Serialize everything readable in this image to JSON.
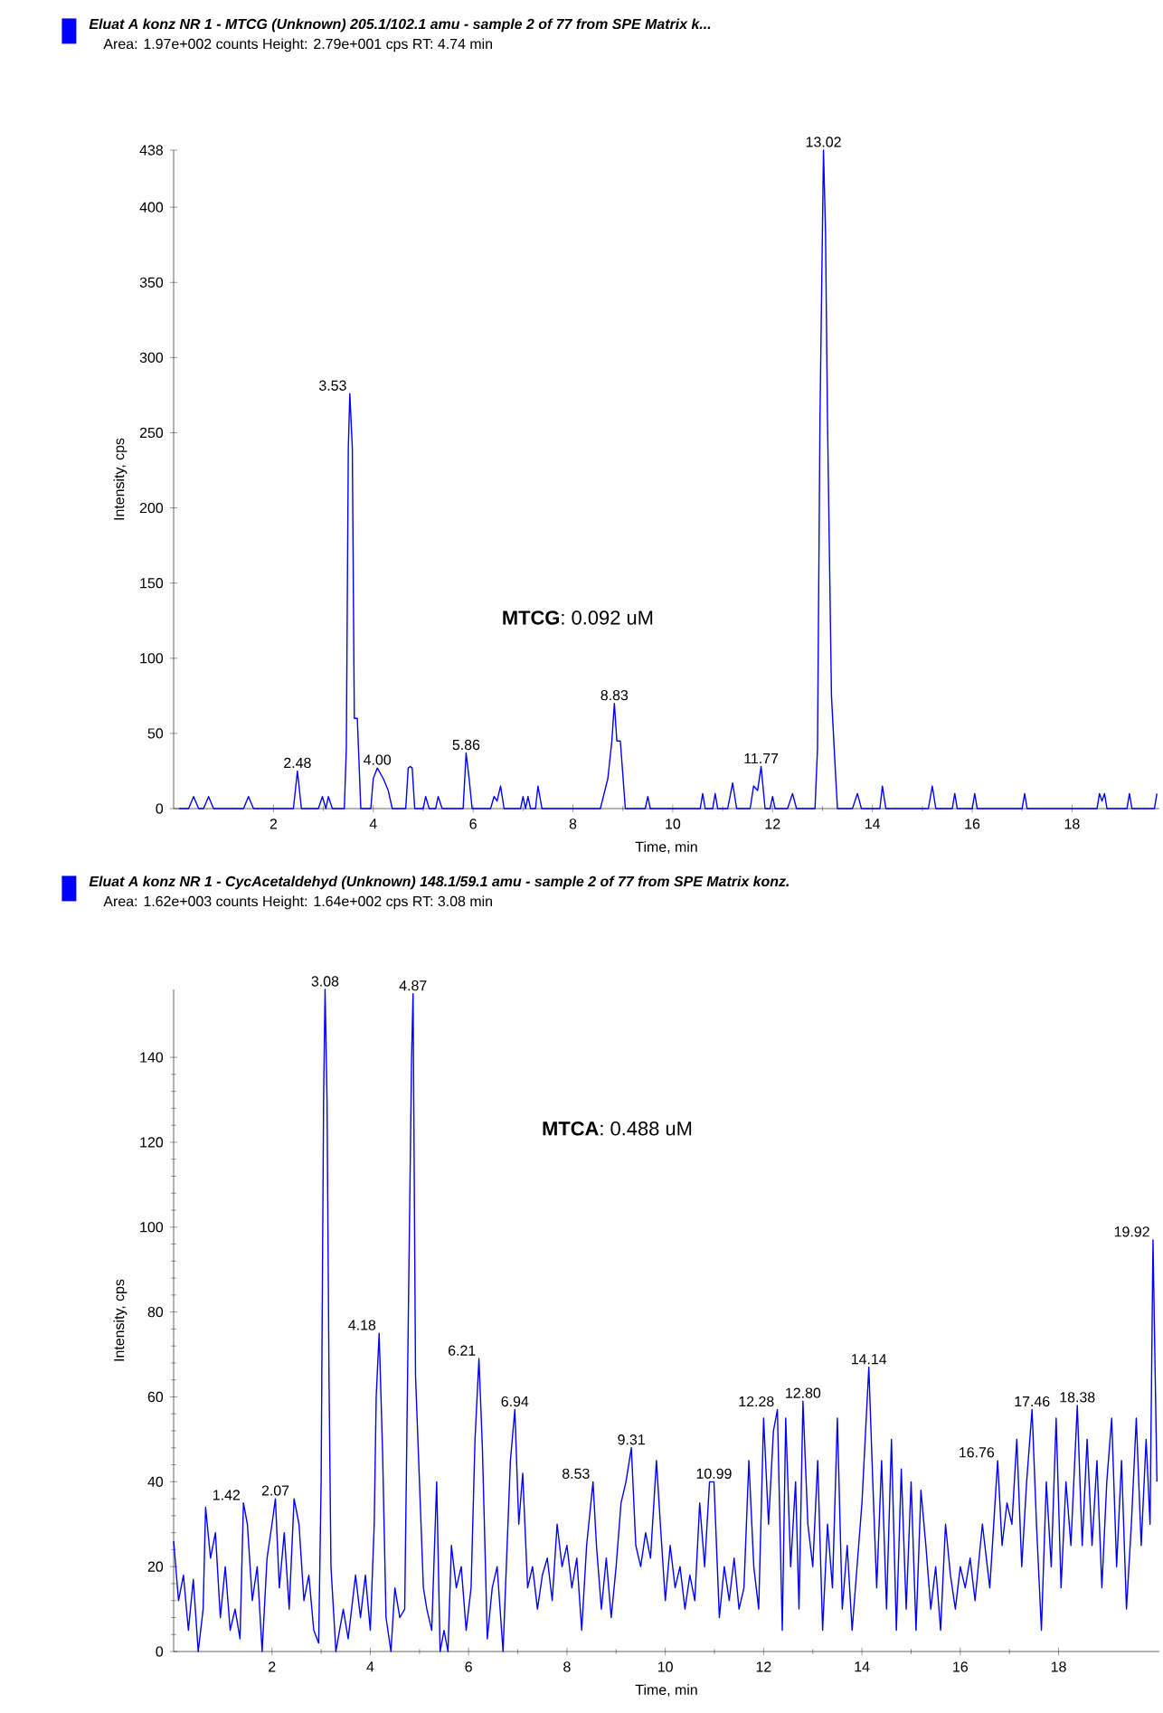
{
  "chart_data": [
    {
      "type": "line",
      "title": "Eluat A konz NR 1 - MTCG (Unknown) 205.1/102.1 amu - sample 2 of 77 from SPE Matrix k...",
      "subtitle": "Area: 1.97e+002 counts  Height: 2.79e+001 cps  RT: 4.74 min",
      "xlabel": "Time, min",
      "ylabel": "Intensity, cps",
      "color": "#0000ff",
      "xlim": [
        0,
        19.75
      ],
      "ylim": [
        0,
        438
      ],
      "xticks": [
        2,
        4,
        6,
        8,
        10,
        12,
        14,
        16,
        18
      ],
      "yticks": [
        0,
        50,
        100,
        150,
        200,
        250,
        300,
        350,
        400,
        438
      ],
      "x": [
        0.1,
        0.3,
        0.4,
        0.5,
        0.6,
        0.7,
        0.8,
        1.4,
        1.5,
        1.6,
        2.4,
        2.48,
        2.56,
        2.9,
        2.98,
        3.05,
        3.1,
        3.18,
        3.42,
        3.46,
        3.5,
        3.53,
        3.58,
        3.62,
        3.68,
        3.75,
        3.95,
        4.0,
        4.08,
        4.2,
        4.3,
        4.38,
        4.65,
        4.7,
        4.74,
        4.78,
        4.83,
        5.0,
        5.05,
        5.12,
        5.25,
        5.3,
        5.38,
        5.8,
        5.86,
        5.92,
        5.98,
        6.35,
        6.42,
        6.48,
        6.55,
        6.62,
        6.95,
        7.0,
        7.05,
        7.1,
        7.15,
        7.25,
        7.3,
        7.38,
        8.55,
        8.7,
        8.78,
        8.83,
        8.88,
        8.95,
        9.05,
        9.45,
        9.5,
        9.55,
        10.55,
        10.6,
        10.65,
        10.8,
        10.85,
        10.9,
        11.1,
        11.2,
        11.28,
        11.55,
        11.62,
        11.7,
        11.77,
        11.85,
        11.95,
        12.0,
        12.05,
        12.3,
        12.4,
        12.48,
        12.85,
        12.9,
        12.95,
        13.02,
        13.06,
        13.1,
        13.18,
        13.25,
        13.3,
        13.6,
        13.7,
        13.78,
        14.15,
        14.2,
        14.27,
        15.12,
        15.2,
        15.27,
        15.6,
        15.65,
        15.7,
        16.0,
        16.05,
        16.1,
        17.0,
        17.05,
        17.1,
        18.5,
        18.55,
        18.6,
        18.65,
        18.7,
        19.1,
        19.15,
        19.2,
        19.65,
        19.7
      ],
      "values": [
        0,
        0,
        8,
        0,
        0,
        8,
        0,
        0,
        8,
        0,
        0,
        25,
        0,
        0,
        8,
        0,
        8,
        0,
        0,
        40,
        240,
        276,
        240,
        60,
        60,
        0,
        0,
        20,
        27,
        20,
        12,
        0,
        0,
        27,
        28,
        27,
        0,
        0,
        8,
        0,
        0,
        8,
        0,
        0,
        37,
        20,
        0,
        0,
        8,
        5,
        15,
        0,
        0,
        8,
        0,
        8,
        0,
        0,
        15,
        0,
        0,
        20,
        45,
        70,
        45,
        45,
        0,
        0,
        8,
        0,
        0,
        10,
        0,
        0,
        10,
        0,
        0,
        17,
        0,
        0,
        15,
        12,
        28,
        0,
        0,
        8,
        0,
        0,
        10,
        0,
        0,
        40,
        260,
        438,
        385,
        260,
        75,
        30,
        0,
        0,
        10,
        0,
        0,
        15,
        0,
        0,
        15,
        0,
        0,
        10,
        0,
        0,
        10,
        0,
        0,
        10,
        0,
        0,
        10,
        5,
        10,
        0,
        0,
        10,
        0,
        0,
        10
      ],
      "annotations": [
        "**MTCG**: 0.092 uM",
        {
          "text": "2.48",
          "x": 2.48,
          "y": 25
        },
        {
          "text": "3.53",
          "x": 3.53,
          "y": 276
        },
        {
          "text": "4.00",
          "x": 4.08,
          "y": 27
        },
        {
          "text": "5.86",
          "x": 5.86,
          "y": 37
        },
        {
          "text": "8.83",
          "x": 8.83,
          "y": 70
        },
        {
          "text": "11.77",
          "x": 11.77,
          "y": 28
        },
        {
          "text": "13.02",
          "x": 13.02,
          "y": 438
        }
      ]
    },
    {
      "type": "line",
      "title": "Eluat A konz NR 1 - CycAcetaldehyd (Unknown) 148.1/59.1 amu - sample 2 of 77 from SPE Matrix konz.",
      "subtitle": "Area: 1.62e+003 counts  Height: 1.64e+002 cps  RT: 3.08 min",
      "xlabel": "Time, min",
      "ylabel": "Intensity, cps",
      "color": "#0000ff",
      "xlim": [
        0,
        20.05
      ],
      "ylim": [
        0,
        156
      ],
      "xticks": [
        2,
        4,
        6,
        8,
        10,
        12,
        14,
        16,
        18
      ],
      "yticks": [
        0,
        20,
        40,
        60,
        80,
        100,
        120,
        140
      ],
      "x": [
        0.0,
        0.1,
        0.2,
        0.3,
        0.4,
        0.5,
        0.6,
        0.65,
        0.75,
        0.85,
        0.95,
        1.05,
        1.15,
        1.25,
        1.35,
        1.42,
        1.5,
        1.6,
        1.7,
        1.8,
        1.9,
        2.0,
        2.07,
        2.15,
        2.25,
        2.35,
        2.45,
        2.55,
        2.65,
        2.75,
        2.85,
        2.95,
        3.0,
        3.05,
        3.08,
        3.12,
        3.16,
        3.2,
        3.3,
        3.45,
        3.55,
        3.7,
        3.8,
        3.9,
        4.0,
        4.08,
        4.12,
        4.18,
        4.25,
        4.32,
        4.42,
        4.5,
        4.6,
        4.7,
        4.78,
        4.84,
        4.87,
        4.92,
        5.0,
        5.08,
        5.15,
        5.25,
        5.35,
        5.42,
        5.5,
        5.58,
        5.65,
        5.75,
        5.85,
        5.95,
        6.05,
        6.13,
        6.21,
        6.28,
        6.38,
        6.48,
        6.58,
        6.7,
        6.85,
        6.94,
        7.02,
        7.1,
        7.2,
        7.3,
        7.4,
        7.5,
        7.6,
        7.7,
        7.8,
        7.9,
        8.0,
        8.1,
        8.2,
        8.3,
        8.4,
        8.53,
        8.6,
        8.7,
        8.8,
        8.9,
        9.0,
        9.1,
        9.2,
        9.31,
        9.4,
        9.5,
        9.6,
        9.7,
        9.82,
        9.9,
        10.0,
        10.1,
        10.2,
        10.3,
        10.4,
        10.5,
        10.6,
        10.7,
        10.8,
        10.9,
        10.99,
        11.1,
        11.2,
        11.3,
        11.4,
        11.5,
        11.6,
        11.7,
        11.8,
        11.9,
        12.0,
        12.1,
        12.2,
        12.28,
        12.38,
        12.45,
        12.55,
        12.65,
        12.72,
        12.8,
        12.9,
        13.0,
        13.1,
        13.2,
        13.3,
        13.4,
        13.5,
        13.6,
        13.7,
        13.8,
        13.9,
        14.0,
        14.14,
        14.22,
        14.3,
        14.4,
        14.5,
        14.6,
        14.7,
        14.8,
        14.9,
        15.0,
        15.1,
        15.2,
        15.3,
        15.4,
        15.5,
        15.6,
        15.7,
        15.8,
        15.9,
        16.0,
        16.1,
        16.2,
        16.3,
        16.45,
        16.6,
        16.76,
        16.85,
        16.95,
        17.05,
        17.15,
        17.25,
        17.35,
        17.46,
        17.55,
        17.65,
        17.75,
        17.85,
        17.95,
        18.05,
        18.15,
        18.25,
        18.38,
        18.48,
        18.58,
        18.68,
        18.78,
        18.88,
        18.98,
        19.08,
        19.18,
        19.28,
        19.38,
        19.48,
        19.58,
        19.68,
        19.78,
        19.86,
        19.92,
        20.0
      ],
      "values": [
        26,
        12,
        18,
        5,
        17,
        0,
        10,
        34,
        22,
        28,
        8,
        20,
        5,
        10,
        3,
        35,
        30,
        12,
        20,
        0,
        22,
        30,
        36,
        15,
        28,
        10,
        36,
        30,
        12,
        18,
        5,
        2,
        40,
        130,
        156,
        130,
        65,
        20,
        0,
        10,
        3,
        18,
        8,
        18,
        5,
        30,
        60,
        75,
        47,
        8,
        0,
        15,
        8,
        10,
        85,
        140,
        155,
        65,
        40,
        15,
        10,
        5,
        40,
        0,
        5,
        0,
        25,
        15,
        20,
        5,
        15,
        50,
        69,
        48,
        3,
        15,
        20,
        0,
        45,
        57,
        30,
        42,
        15,
        20,
        10,
        18,
        22,
        12,
        30,
        20,
        25,
        15,
        22,
        5,
        25,
        40,
        25,
        10,
        22,
        8,
        20,
        35,
        40,
        48,
        25,
        20,
        28,
        22,
        45,
        30,
        12,
        25,
        15,
        20,
        10,
        18,
        12,
        35,
        20,
        40,
        40,
        8,
        20,
        12,
        22,
        10,
        15,
        45,
        20,
        10,
        55,
        30,
        52,
        57,
        5,
        55,
        20,
        40,
        10,
        59,
        30,
        20,
        45,
        5,
        30,
        15,
        55,
        10,
        25,
        5,
        20,
        35,
        67,
        40,
        15,
        45,
        10,
        50,
        5,
        43,
        10,
        40,
        5,
        38,
        25,
        10,
        20,
        5,
        30,
        18,
        10,
        20,
        15,
        22,
        12,
        30,
        15,
        45,
        25,
        35,
        30,
        50,
        20,
        40,
        57,
        30,
        5,
        40,
        20,
        55,
        15,
        40,
        25,
        58,
        25,
        50,
        25,
        45,
        15,
        40,
        55,
        20,
        45,
        10,
        30,
        55,
        25,
        50,
        30,
        97,
        40
      ],
      "annotations": [
        "**MTCA**: 0.488 uM",
        {
          "text": "1.42",
          "x": 1.42,
          "y": 35
        },
        {
          "text": "2.07",
          "x": 2.07,
          "y": 36
        },
        {
          "text": "3.08",
          "x": 3.08,
          "y": 156
        },
        {
          "text": "4.18",
          "x": 4.18,
          "y": 75
        },
        {
          "text": "4.87",
          "x": 4.87,
          "y": 155
        },
        {
          "text": "6.21",
          "x": 6.21,
          "y": 69
        },
        {
          "text": "6.94",
          "x": 6.94,
          "y": 57
        },
        {
          "text": "8.53",
          "x": 8.53,
          "y": 40
        },
        {
          "text": "9.31",
          "x": 9.31,
          "y": 48
        },
        {
          "text": "10.99",
          "x": 10.99,
          "y": 40
        },
        {
          "text": "12.28",
          "x": 12.28,
          "y": 57
        },
        {
          "text": "12.80",
          "x": 12.8,
          "y": 59
        },
        {
          "text": "14.14",
          "x": 14.14,
          "y": 67
        },
        {
          "text": "16.76",
          "x": 16.76,
          "y": 45
        },
        {
          "text": "17.46",
          "x": 17.46,
          "y": 57
        },
        {
          "text": "18.38",
          "x": 18.38,
          "y": 58
        },
        {
          "text": "19.92",
          "x": 19.92,
          "y": 97
        }
      ]
    }
  ]
}
